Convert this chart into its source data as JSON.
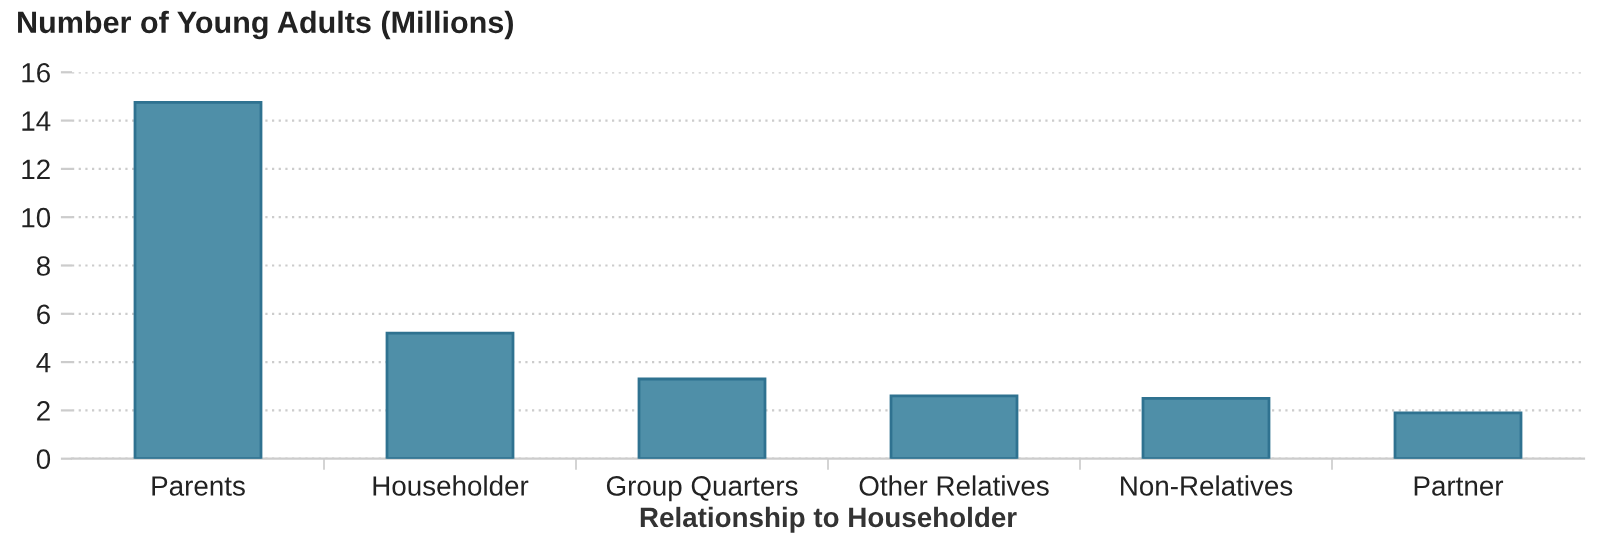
{
  "chart_data": {
    "type": "bar",
    "title": "Number of Young Adults (Millions)",
    "xlabel": "Relationship to Householder",
    "categories": [
      "Parents",
      "Householder",
      "Group Quarters",
      "Other Relatives",
      "Non-Relatives",
      "Partner"
    ],
    "values": [
      14.75,
      5.2,
      3.3,
      2.6,
      2.5,
      1.9
    ],
    "color": "#4f8fa8",
    "ylim": [
      0,
      16
    ],
    "yticks": [
      0,
      2,
      4,
      6,
      8,
      10,
      12,
      14,
      16
    ],
    "grid": "y"
  }
}
